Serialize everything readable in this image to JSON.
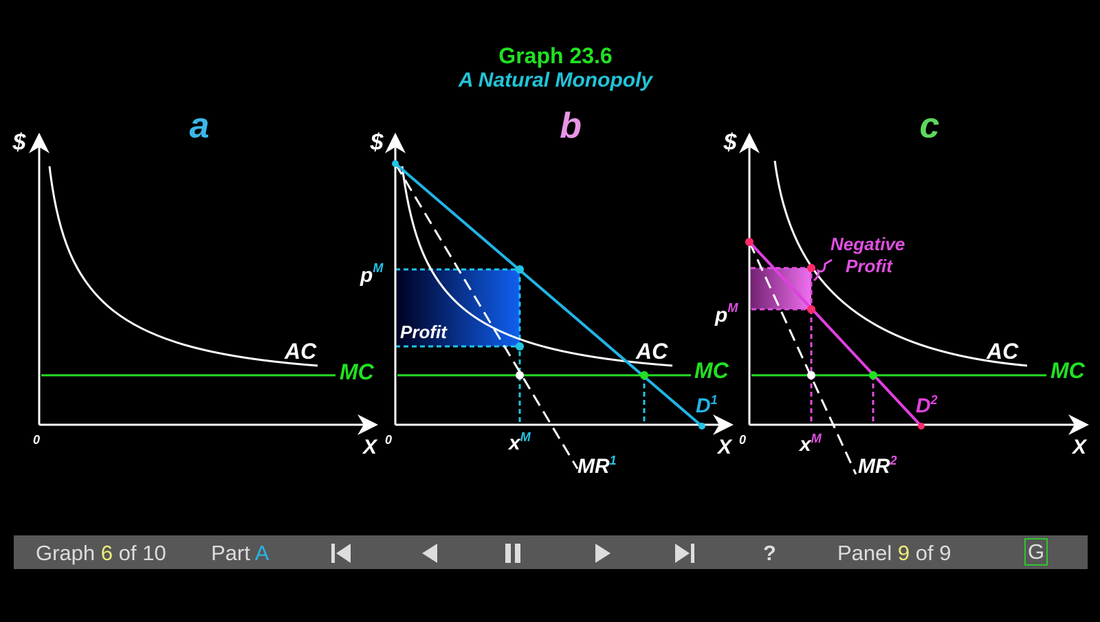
{
  "title": "Graph 23.6",
  "subtitle": "A Natural Monopoly",
  "panels": {
    "a": {
      "label": "a",
      "y_axis": "$",
      "x_axis": "X",
      "origin": "0",
      "ac": "AC",
      "mc": "MC"
    },
    "b": {
      "label": "b",
      "y_axis": "$",
      "x_axis": "X",
      "origin": "0",
      "ac": "AC",
      "mc": "MC",
      "price": "p",
      "price_sup": "M",
      "qty": "x",
      "qty_sup": "M",
      "demand": "D",
      "demand_sup": "1",
      "mr": "MR",
      "mr_sup": "1",
      "area_label": "Profit"
    },
    "c": {
      "label": "c",
      "y_axis": "$",
      "x_axis": "X",
      "origin": "0",
      "ac": "AC",
      "mc": "MC",
      "price": "p",
      "price_sup": "M",
      "qty": "x",
      "qty_sup": "M",
      "demand": "D",
      "demand_sup": "2",
      "mr": "MR",
      "mr_sup": "2",
      "area_label_1": "Negative",
      "area_label_2": "Profit"
    }
  },
  "colors": {
    "title": "#22e022",
    "subtitle": "#22c4d8",
    "mc": "#22e022",
    "demand1": "#22b4e6",
    "demand2": "#e040e0",
    "curve": "#ffffff"
  },
  "toolbar": {
    "graph_word": "Graph",
    "graph_num": "6",
    "graph_of": "of 10",
    "part_word": "Part",
    "part_val": "A",
    "help": "?",
    "panel_word": "Panel",
    "panel_num": "9",
    "panel_of": "of 9",
    "g_button": "G"
  }
}
